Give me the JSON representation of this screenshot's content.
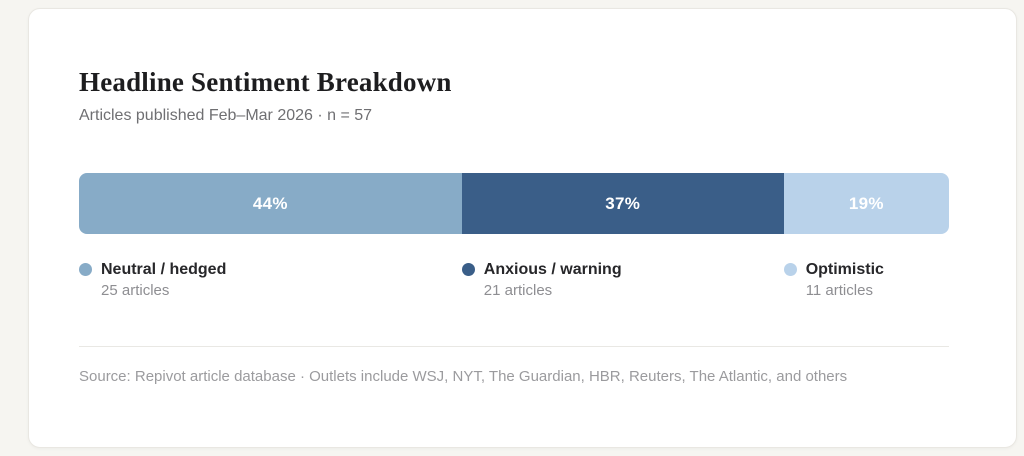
{
  "card": {
    "title": "Headline Sentiment Breakdown",
    "subtitle": "Articles published Feb–Mar 2026  ·  n = 57",
    "source_note": "Source: Repivot article database  ·  Outlets include WSJ, NYT, The Guardian, HBR, Reuters, The Atlantic, and others"
  },
  "chart_data": {
    "type": "bar",
    "variant": "stacked-horizontal-single-row",
    "title": "Headline Sentiment Breakdown",
    "subtitle": "Articles published Feb–Mar 2026 · n = 57",
    "total_n": 57,
    "unit": "articles",
    "legend_position": "below-bar-aligned-to-segment-start",
    "segments": [
      {
        "label": "Neutral / hedged",
        "percent": 44,
        "percent_label": "44%",
        "count": 25,
        "count_label": "25 articles",
        "color": "#87abc7"
      },
      {
        "label": "Anxious / warning",
        "percent": 37,
        "percent_label": "37%",
        "count": 21,
        "count_label": "21 articles",
        "color": "#3a5e88"
      },
      {
        "label": "Optimistic",
        "percent": 19,
        "percent_label": "19%",
        "count": 11,
        "count_label": "11 articles",
        "color": "#b9d2ea"
      }
    ],
    "source_note": "Source: Repivot article database · Outlets include WSJ, NYT, The Guardian, HBR, Reuters, The Atlantic, and others"
  },
  "colors": {
    "page_background": "#f6f5f1",
    "card_background": "#ffffff",
    "card_border": "#e9e7e2",
    "title_text": "#1d1d1f",
    "subtitle_text": "#6f6f72",
    "segment_label_text": "#ffffff",
    "legend_label_text": "#27272a",
    "legend_count_text": "#8e8e92",
    "divider": "#e9e8e4",
    "footer_text": "#9b9b9e"
  }
}
